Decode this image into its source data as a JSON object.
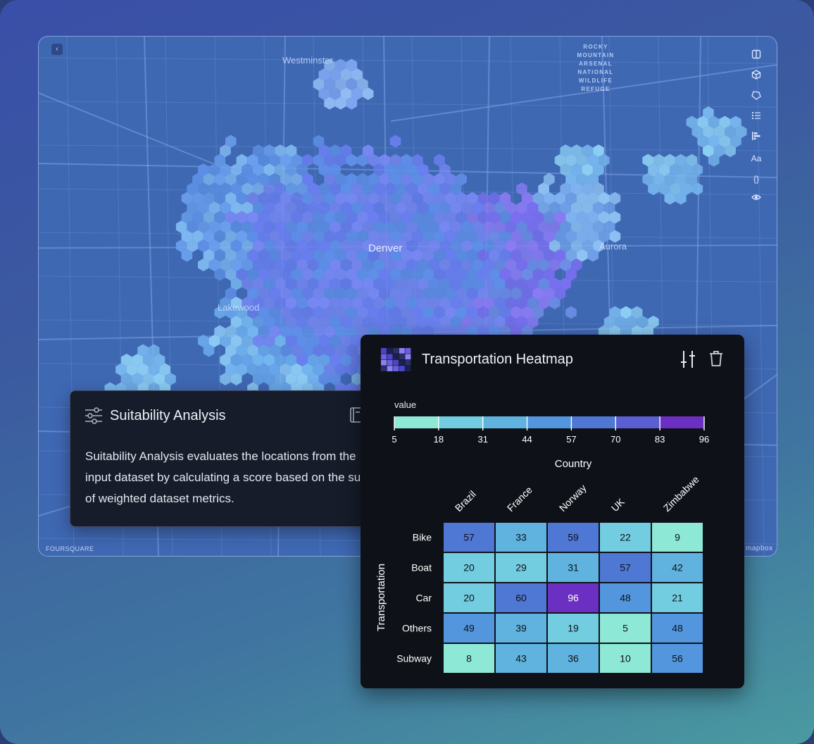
{
  "map": {
    "labels": {
      "westminster": "Westminster",
      "denver": "Denver",
      "aurora": "Aurora",
      "lakewood": "Lakewood"
    },
    "arsenal_label": "ROCKY MOUNTAIN ARSENAL NATIONAL WILDLIFE REFUGE",
    "attribution_left": "FOURSQUARE",
    "attribution_right": "mapbox",
    "toolbar": {
      "text_tool": "Aa",
      "code_tool": "{}"
    }
  },
  "suitability": {
    "title": "Suitability Analysis",
    "description": "Suitability Analysis evaluates the locations from the input dataset by calculating a score based on the sum of weighted dataset metrics."
  },
  "heatmap_panel": {
    "title": "Transportation Heatmap"
  },
  "chart_data": {
    "type": "heatmap",
    "title": "Transportation Heatmap",
    "legend_title": "value",
    "legend_ticks": [
      5,
      18,
      31,
      44,
      57,
      70,
      83,
      96
    ],
    "legend_colors": [
      "#8ee8d6",
      "#72cde0",
      "#5fb3de",
      "#5396de",
      "#4f78d4",
      "#5a5ed2",
      "#6b2fc2"
    ],
    "value_range": [
      5,
      96
    ],
    "xlabel": "Country",
    "ylabel": "Transportation",
    "x": [
      "Brazil",
      "France",
      "Norway",
      "UK",
      "Zimbabwe"
    ],
    "y": [
      "Bike",
      "Boat",
      "Car",
      "Others",
      "Subway"
    ],
    "values": [
      [
        57,
        33,
        59,
        22,
        9
      ],
      [
        20,
        29,
        31,
        57,
        42
      ],
      [
        20,
        60,
        96,
        48,
        21
      ],
      [
        49,
        39,
        19,
        5,
        48
      ],
      [
        8,
        43,
        36,
        10,
        56
      ]
    ]
  }
}
